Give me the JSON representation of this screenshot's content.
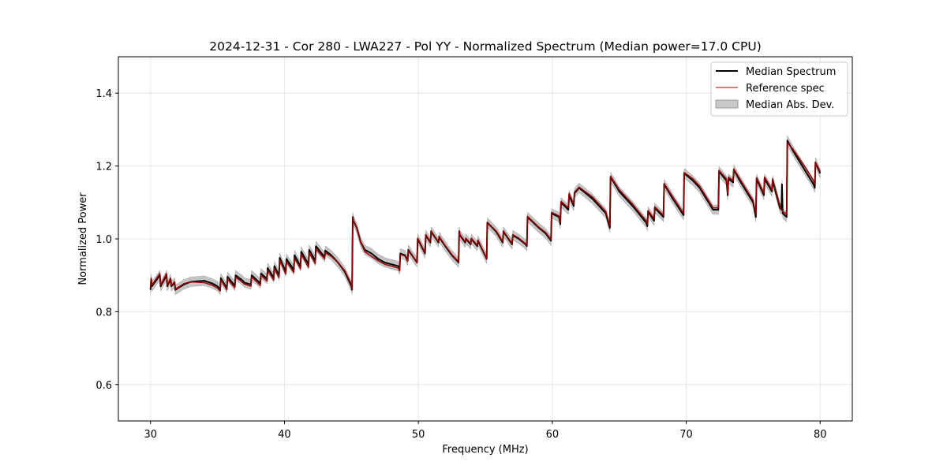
{
  "chart_data": {
    "type": "line",
    "title": "2024-12-31 - Cor 280 - LWA227 - Pol YY - Normalized Spectrum (Median power=17.0 CPU)",
    "xlabel": "Frequency (MHz)",
    "ylabel": "Normalized Power",
    "xlim": [
      27.6,
      82.4
    ],
    "ylim": [
      0.5,
      1.5
    ],
    "xticks": [
      30,
      40,
      50,
      60,
      70,
      80
    ],
    "yticks": [
      0.6,
      0.8,
      1.0,
      1.2,
      1.4
    ],
    "xtick_labels": [
      "30",
      "40",
      "50",
      "60",
      "70",
      "80"
    ],
    "ytick_labels": [
      "0.6",
      "0.8",
      "1.0",
      "1.2",
      "1.4"
    ],
    "grid": true,
    "legend_position": "top-right",
    "mad_width": 0.013,
    "series": [
      {
        "name": "Median Spectrum",
        "color": "#000000",
        "x": [
          30.0,
          30.05,
          30.1,
          30.7,
          30.75,
          31.2,
          31.25,
          31.5,
          31.55,
          31.8,
          31.85,
          32.5,
          33.0,
          34.0,
          34.6,
          35.0,
          35.2,
          35.25,
          35.7,
          35.75,
          36.3,
          36.35,
          36.9,
          37.0,
          37.5,
          37.55,
          38.2,
          38.25,
          38.7,
          38.75,
          39.2,
          39.25,
          39.6,
          39.65,
          40.1,
          40.15,
          40.7,
          40.75,
          41.2,
          41.25,
          41.8,
          41.85,
          42.3,
          42.35,
          43.0,
          43.05,
          43.5,
          44.0,
          44.5,
          45.0,
          45.05,
          45.1,
          45.15,
          45.4,
          45.7,
          46.0,
          46.5,
          47.0,
          47.5,
          48.0,
          48.5,
          48.6,
          48.65,
          49.0,
          49.2,
          49.25,
          49.9,
          49.95,
          50.5,
          50.55,
          50.9,
          50.95,
          51.5,
          51.55,
          52.0,
          52.5,
          53.0,
          53.05,
          53.1,
          53.5,
          53.55,
          53.9,
          53.95,
          54.4,
          54.45,
          55.1,
          55.15,
          55.8,
          56.3,
          56.35,
          57.0,
          57.05,
          57.5,
          58.0,
          58.1,
          58.15,
          59.0,
          59.5,
          59.9,
          59.95,
          60.5,
          60.6,
          60.65,
          61.2,
          61.25,
          61.6,
          61.65,
          62.0,
          63.0,
          64.0,
          64.3,
          64.35,
          65.0,
          66.0,
          67.0,
          67.1,
          67.15,
          67.6,
          67.65,
          68.3,
          68.35,
          69.0,
          69.8,
          69.85,
          70.5,
          71.0,
          72.0,
          72.4,
          72.45,
          73.0,
          73.1,
          73.15,
          73.5,
          73.55,
          74.0,
          75.0,
          75.2,
          75.25,
          75.8,
          75.85,
          76.4,
          76.45,
          77.0,
          77.1,
          77.15,
          77.2,
          77.5,
          77.55,
          78.0,
          79.0,
          79.5,
          79.6,
          79.65,
          80.0
        ],
        "y": [
          0.86,
          0.89,
          0.87,
          0.9,
          0.87,
          0.9,
          0.87,
          0.89,
          0.87,
          0.88,
          0.86,
          0.875,
          0.882,
          0.885,
          0.878,
          0.87,
          0.86,
          0.892,
          0.865,
          0.896,
          0.871,
          0.9,
          0.885,
          0.88,
          0.875,
          0.9,
          0.878,
          0.905,
          0.89,
          0.92,
          0.893,
          0.925,
          0.9,
          0.948,
          0.91,
          0.945,
          0.915,
          0.955,
          0.925,
          0.965,
          0.93,
          0.97,
          0.94,
          0.98,
          0.95,
          0.968,
          0.955,
          0.935,
          0.91,
          0.87,
          0.86,
          1.06,
          1.05,
          1.03,
          0.99,
          0.97,
          0.96,
          0.945,
          0.935,
          0.93,
          0.925,
          0.915,
          0.96,
          0.955,
          0.94,
          0.97,
          0.935,
          1.0,
          0.96,
          1.01,
          0.99,
          1.02,
          0.99,
          1.005,
          0.98,
          0.955,
          0.935,
          1.02,
          1.01,
          0.99,
          1.0,
          0.985,
          1.0,
          0.98,
          0.995,
          0.945,
          1.045,
          1.02,
          0.99,
          1.02,
          0.985,
          1.01,
          1.0,
          0.985,
          0.98,
          1.06,
          1.03,
          1.015,
          0.995,
          1.07,
          1.06,
          1.04,
          1.1,
          1.08,
          1.12,
          1.09,
          1.125,
          1.14,
          1.11,
          1.07,
          1.03,
          1.17,
          1.13,
          1.09,
          1.045,
          1.035,
          1.075,
          1.05,
          1.085,
          1.06,
          1.15,
          1.11,
          1.065,
          1.18,
          1.16,
          1.14,
          1.08,
          1.08,
          1.185,
          1.16,
          1.12,
          1.165,
          1.155,
          1.19,
          1.16,
          1.1,
          1.06,
          1.165,
          1.12,
          1.165,
          1.13,
          1.16,
          1.085,
          1.08,
          1.15,
          1.07,
          1.06,
          1.27,
          1.24,
          1.18,
          1.15,
          1.14,
          1.21,
          1.18
        ]
      },
      {
        "name": "Reference spec",
        "color": "#ee4444",
        "x": [
          30.0,
          30.05,
          30.1,
          30.7,
          30.75,
          31.2,
          31.25,
          31.5,
          31.55,
          31.8,
          31.85,
          32.5,
          33.0,
          34.0,
          34.6,
          35.0,
          35.2,
          35.25,
          35.7,
          35.75,
          36.3,
          36.35,
          36.9,
          37.0,
          37.5,
          37.55,
          38.2,
          38.25,
          38.7,
          38.75,
          39.2,
          39.25,
          39.6,
          39.65,
          40.1,
          40.15,
          40.7,
          40.75,
          41.2,
          41.25,
          41.8,
          41.85,
          42.3,
          42.35,
          43.0,
          43.05,
          43.5,
          44.0,
          44.5,
          45.0,
          45.05,
          45.1,
          45.15,
          45.4,
          45.7,
          46.0,
          46.5,
          47.0,
          47.5,
          48.0,
          48.5,
          48.6,
          48.65,
          49.0,
          49.2,
          49.25,
          49.9,
          49.95,
          50.5,
          50.55,
          50.9,
          50.95,
          51.5,
          51.55,
          52.0,
          52.5,
          53.0,
          53.05,
          53.1,
          53.5,
          53.55,
          53.9,
          53.95,
          54.4,
          54.45,
          55.1,
          55.15,
          55.8,
          56.3,
          56.35,
          57.0,
          57.05,
          57.5,
          58.0,
          58.1,
          58.15,
          59.0,
          59.5,
          59.9,
          59.95,
          60.5,
          60.6,
          60.65,
          61.2,
          61.25,
          61.6,
          61.65,
          62.0,
          63.0,
          64.0,
          64.3,
          64.35,
          65.0,
          66.0,
          67.0,
          67.1,
          67.15,
          67.6,
          67.65,
          68.3,
          68.35,
          69.0,
          69.8,
          69.85,
          70.5,
          71.0,
          72.0,
          72.4,
          72.45,
          73.0,
          73.1,
          73.15,
          73.5,
          73.55,
          74.0,
          75.0,
          75.2,
          75.25,
          75.8,
          75.85,
          76.4,
          76.45,
          77.0,
          77.1,
          77.15,
          77.2,
          77.5,
          77.55,
          78.0,
          79.0,
          79.5,
          79.6,
          79.65,
          80.0
        ],
        "y": [
          0.865,
          0.892,
          0.873,
          0.905,
          0.873,
          0.905,
          0.873,
          0.892,
          0.872,
          0.882,
          0.862,
          0.877,
          0.882,
          0.88,
          0.873,
          0.865,
          0.857,
          0.888,
          0.86,
          0.89,
          0.866,
          0.895,
          0.88,
          0.876,
          0.87,
          0.896,
          0.872,
          0.9,
          0.884,
          0.914,
          0.887,
          0.919,
          0.894,
          0.942,
          0.904,
          0.938,
          0.908,
          0.948,
          0.918,
          0.958,
          0.922,
          0.962,
          0.932,
          0.972,
          0.945,
          0.962,
          0.952,
          0.935,
          0.913,
          0.875,
          0.862,
          1.06,
          1.05,
          1.03,
          0.99,
          0.965,
          0.952,
          0.94,
          0.93,
          0.925,
          0.92,
          0.912,
          0.958,
          0.953,
          0.938,
          0.968,
          0.935,
          1.002,
          0.962,
          1.012,
          0.992,
          1.022,
          0.992,
          1.007,
          0.982,
          0.957,
          0.937,
          1.022,
          1.012,
          0.992,
          1.002,
          0.987,
          1.002,
          0.982,
          0.997,
          0.945,
          1.045,
          1.022,
          0.993,
          1.022,
          0.987,
          1.012,
          1.002,
          0.987,
          0.982,
          1.062,
          1.032,
          1.018,
          0.998,
          1.073,
          1.063,
          1.045,
          1.103,
          1.085,
          1.125,
          1.095,
          1.128,
          1.142,
          1.115,
          1.075,
          1.035,
          1.172,
          1.135,
          1.095,
          1.05,
          1.04,
          1.078,
          1.055,
          1.088,
          1.065,
          1.152,
          1.115,
          1.07,
          1.182,
          1.165,
          1.145,
          1.085,
          1.085,
          1.188,
          1.165,
          1.125,
          1.17,
          1.16,
          1.192,
          1.165,
          1.105,
          1.068,
          1.168,
          1.125,
          1.17,
          1.135,
          1.165,
          1.09,
          1.08,
          1.08,
          1.075,
          1.068,
          1.265,
          1.245,
          1.19,
          1.16,
          1.15,
          1.21,
          1.185
        ]
      },
      {
        "name": "Median Abs. Dev.",
        "color": "#bbbbbb"
      }
    ]
  }
}
